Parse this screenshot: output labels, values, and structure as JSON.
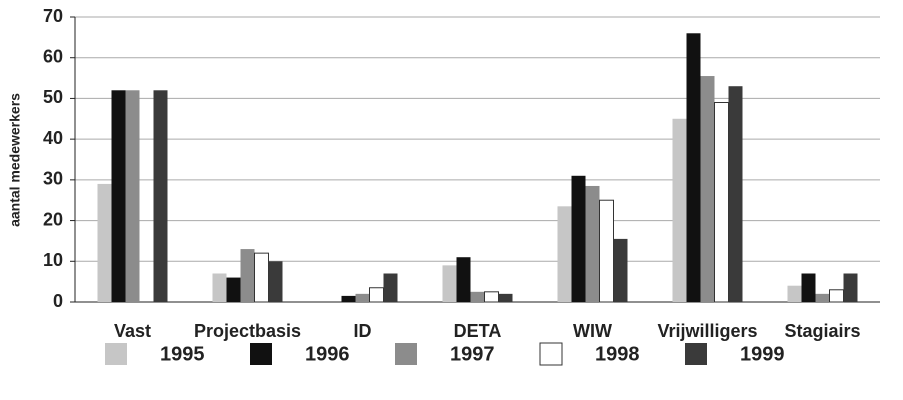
{
  "chart_data": {
    "type": "bar",
    "y_label": "aantal medewerkers",
    "categories": [
      "Vast",
      "Projectbasis",
      "ID",
      "DETA",
      "WIW",
      "Vrijwilligers",
      "Stagiairs"
    ],
    "series": [
      {
        "name": "1995",
        "color": "#c6c6c6",
        "values": [
          29,
          7,
          0,
          9,
          23.5,
          45,
          4
        ]
      },
      {
        "name": "1996",
        "color": "#111111",
        "values": [
          52,
          6,
          1.5,
          11,
          31,
          66,
          7
        ]
      },
      {
        "name": "1997",
        "color": "#8c8c8c",
        "values": [
          52,
          13,
          2,
          2.5,
          28.5,
          55.5,
          2
        ]
      },
      {
        "name": "1998",
        "color": "#ffffff",
        "values": [
          null,
          12,
          3.5,
          2.5,
          25,
          49,
          3
        ]
      },
      {
        "name": "1999",
        "color": "#3a3a3a",
        "values": [
          52,
          10,
          7,
          2,
          15.5,
          53,
          7
        ]
      }
    ],
    "ylim": [
      0,
      70
    ],
    "yticks": [
      0,
      10,
      20,
      30,
      40,
      50,
      60,
      70
    ],
    "grid": true
  }
}
